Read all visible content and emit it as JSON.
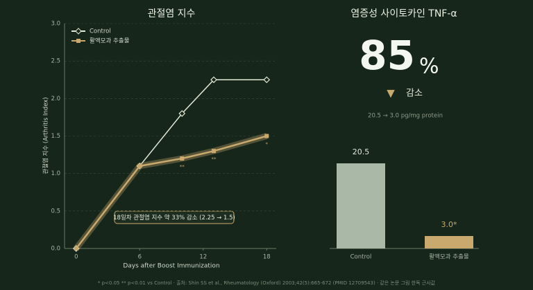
{
  "chart_data": [
    {
      "type": "line",
      "title": "관절염 지수",
      "x_label": "Days after Boost Immunization",
      "y_label": "관절염 지수 (Arthritis Index)",
      "x": [
        0,
        6,
        10,
        13,
        18
      ],
      "series": [
        {
          "name": "Control",
          "color": "#e2ead6",
          "marker": "diamond",
          "values": [
            0,
            1.1,
            1.8,
            2.25,
            2.25
          ]
        },
        {
          "name": "활액모과 추출물",
          "color": "#c9a96e",
          "marker": "square",
          "values": [
            0,
            1.1,
            1.2,
            1.3,
            1.5
          ],
          "point_labels": [
            null,
            null,
            "**",
            "**",
            "*"
          ]
        }
      ],
      "xlim": [
        -1.1,
        18.9
      ],
      "xticks": [
        0,
        6,
        12,
        18
      ],
      "ylim": [
        0,
        3
      ],
      "yticks": [
        {
          "value": 0,
          "label": "0.0"
        },
        {
          "value": 0.5,
          "label": "0.5"
        },
        {
          "value": 1,
          "label": "1.0"
        },
        {
          "value": 1.5,
          "label": "1.5"
        },
        {
          "value": 2,
          "label": "2.0"
        },
        {
          "value": 2.5,
          "label": "2.5"
        },
        {
          "value": 3,
          "label": "3.0"
        }
      ],
      "grid": true,
      "legend": "upper left",
      "annotation": "18일차 관절염 지수 약 33% 감소  (2.25 → 1.5)"
    },
    {
      "type": "bar",
      "title": "염증성 사이토카인  TNF-α",
      "headline": {
        "value": 85,
        "unit": "%"
      },
      "change": {
        "symbol": "▼",
        "label": "감소"
      },
      "subtitle": "20.5 → 3.0 pg/mg protein",
      "categories": [
        "Control",
        "활액모과 추출물"
      ],
      "colors": [
        "#a9b8a7",
        "#c9a96e"
      ],
      "values": [
        20.5,
        3.0
      ],
      "value_labels": [
        "20.5",
        "3.0*"
      ],
      "ylim": [
        0,
        30
      ]
    }
  ],
  "footnote": "* p<0.05 ** p<0.01 vs Control · 출처: Shin SS et al., Rheumatology (Oxford) 2003;42(5):665-672 (PMID 12709543) · 같은 논문 그림 한독 근사값"
}
